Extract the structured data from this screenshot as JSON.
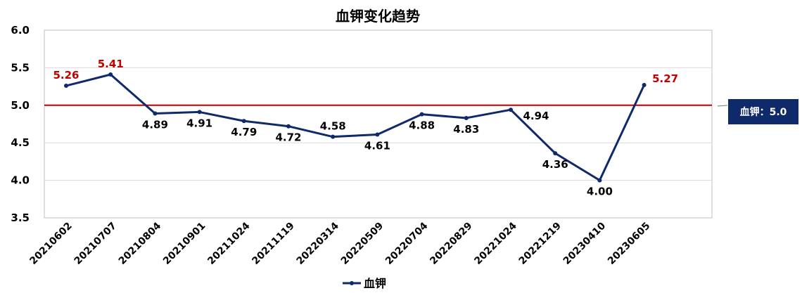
{
  "chart_data": {
    "type": "line",
    "title": "血钾变化趋势",
    "categories": [
      "20210602",
      "20210707",
      "20210804",
      "20210901",
      "20211024",
      "20211119",
      "20220314",
      "20220509",
      "20220704",
      "20220829",
      "20221024",
      "20221219",
      "20230410",
      "20230605"
    ],
    "series": [
      {
        "name": "血钾",
        "values": [
          5.26,
          5.41,
          4.89,
          4.91,
          4.79,
          4.72,
          4.58,
          4.61,
          4.88,
          4.83,
          4.94,
          4.36,
          4.0,
          5.27
        ]
      }
    ],
    "data_labels": [
      "5.26",
      "5.41",
      "4.89",
      "4.91",
      "4.79",
      "4.72",
      "4.58",
      "4.61",
      "4.88",
      "4.83",
      "4.94",
      "4.36",
      "4.00",
      "5.27"
    ],
    "ylim": [
      3.5,
      6.0
    ],
    "yticks": [
      "3.5",
      "4.0",
      "4.5",
      "5.0",
      "5.5",
      "6.0"
    ],
    "grid": true,
    "legend_position": "bottom",
    "reference_line": {
      "value": 5.0,
      "label": "血钾：5.0",
      "color": "#c00000"
    },
    "colors": {
      "line": "#0f2a6b",
      "highlight_label": "#c00000",
      "normal_label": "#000000",
      "callout_bg": "#0f2a6b",
      "grid": "#d9d9d9"
    }
  }
}
